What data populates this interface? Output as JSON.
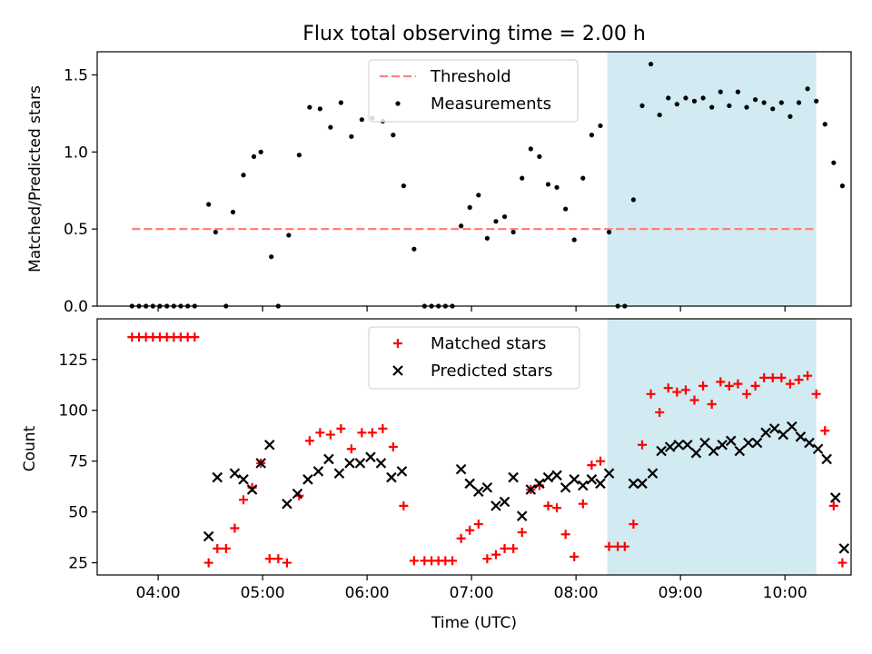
{
  "figure": {
    "title": "Flux total observing time = 2.00 h",
    "xlabel": "Time (UTC)",
    "highlight_color": "#add8e6"
  },
  "chart_data": [
    {
      "type": "scatter",
      "ylabel": "Matched/Predicted stars",
      "xlim": [
        "03:25",
        "10:38"
      ],
      "ylim": [
        0,
        1.65
      ],
      "yticks": [
        "0.0",
        "0.5",
        "1.0",
        "1.5"
      ],
      "grid": false,
      "legend": "top-center",
      "highlight_span": [
        "08:18",
        "10:18"
      ],
      "threshold": {
        "name": "Threshold",
        "value": 0.5,
        "x_range": [
          "03:45",
          "10:18"
        ],
        "color": "#ff7f7f",
        "style": "dashed"
      },
      "series": [
        {
          "name": "Measurements",
          "color": "#000000",
          "marker": "dot",
          "points": [
            [
              "03:45",
              0
            ],
            [
              "03:49",
              0
            ],
            [
              "03:53",
              0
            ],
            [
              "03:57",
              0
            ],
            [
              "04:01",
              0
            ],
            [
              "04:05",
              0
            ],
            [
              "04:09",
              0
            ],
            [
              "04:13",
              0
            ],
            [
              "04:17",
              0
            ],
            [
              "04:21",
              0
            ],
            [
              "04:29",
              0.66
            ],
            [
              "04:33",
              0.48
            ],
            [
              "04:39",
              0
            ],
            [
              "04:43",
              0.61
            ],
            [
              "04:49",
              0.85
            ],
            [
              "04:55",
              0.97
            ],
            [
              "04:59",
              1.0
            ],
            [
              "05:05",
              0.32
            ],
            [
              "05:09",
              0
            ],
            [
              "05:15",
              0.46
            ],
            [
              "05:21",
              0.98
            ],
            [
              "05:27",
              1.29
            ],
            [
              "05:33",
              1.28
            ],
            [
              "05:39",
              1.16
            ],
            [
              "05:45",
              1.32
            ],
            [
              "05:51",
              1.1
            ],
            [
              "05:57",
              1.21
            ],
            [
              "06:03",
              1.22
            ],
            [
              "06:09",
              1.2
            ],
            [
              "06:15",
              1.11
            ],
            [
              "06:21",
              0.78
            ],
            [
              "06:27",
              0.37
            ],
            [
              "06:33",
              0
            ],
            [
              "06:37",
              0
            ],
            [
              "06:41",
              0
            ],
            [
              "06:45",
              0
            ],
            [
              "06:49",
              0
            ],
            [
              "06:54",
              0.52
            ],
            [
              "06:59",
              0.64
            ],
            [
              "07:04",
              0.72
            ],
            [
              "07:09",
              0.44
            ],
            [
              "07:14",
              0.55
            ],
            [
              "07:19",
              0.58
            ],
            [
              "07:24",
              0.48
            ],
            [
              "07:29",
              0.83
            ],
            [
              "07:34",
              1.02
            ],
            [
              "07:39",
              0.97
            ],
            [
              "07:44",
              0.79
            ],
            [
              "07:49",
              0.77
            ],
            [
              "07:54",
              0.63
            ],
            [
              "07:59",
              0.43
            ],
            [
              "08:04",
              0.83
            ],
            [
              "08:09",
              1.11
            ],
            [
              "08:14",
              1.17
            ],
            [
              "08:19",
              0.48
            ],
            [
              "08:24",
              0
            ],
            [
              "08:28",
              0
            ],
            [
              "08:33",
              0.69
            ],
            [
              "08:38",
              1.3
            ],
            [
              "08:43",
              1.57
            ],
            [
              "08:48",
              1.24
            ],
            [
              "08:53",
              1.35
            ],
            [
              "08:58",
              1.31
            ],
            [
              "09:03",
              1.35
            ],
            [
              "09:08",
              1.33
            ],
            [
              "09:13",
              1.35
            ],
            [
              "09:18",
              1.29
            ],
            [
              "09:23",
              1.39
            ],
            [
              "09:28",
              1.3
            ],
            [
              "09:33",
              1.39
            ],
            [
              "09:38",
              1.29
            ],
            [
              "09:43",
              1.34
            ],
            [
              "09:48",
              1.32
            ],
            [
              "09:53",
              1.28
            ],
            [
              "09:58",
              1.32
            ],
            [
              "10:03",
              1.23
            ],
            [
              "10:08",
              1.32
            ],
            [
              "10:13",
              1.41
            ],
            [
              "10:18",
              1.33
            ],
            [
              "10:23",
              1.18
            ],
            [
              "10:28",
              0.93
            ],
            [
              "10:33",
              0.78
            ]
          ]
        }
      ]
    },
    {
      "type": "scatter",
      "ylabel": "Count",
      "xticks": [
        "04:00",
        "05:00",
        "06:00",
        "07:00",
        "08:00",
        "09:00",
        "10:00"
      ],
      "xlim": [
        "03:25",
        "10:38"
      ],
      "ylim": [
        19,
        145
      ],
      "yticks": [
        "25",
        "50",
        "75",
        "100",
        "125"
      ],
      "grid": false,
      "legend": "top-center",
      "highlight_span": [
        "08:18",
        "10:18"
      ],
      "series": [
        {
          "name": "Matched stars",
          "color": "#ff0000",
          "marker": "plus",
          "points": [
            [
              "03:45",
              136
            ],
            [
              "03:49",
              136
            ],
            [
              "03:53",
              136
            ],
            [
              "03:57",
              136
            ],
            [
              "04:01",
              136
            ],
            [
              "04:05",
              136
            ],
            [
              "04:09",
              136
            ],
            [
              "04:13",
              136
            ],
            [
              "04:17",
              136
            ],
            [
              "04:21",
              136
            ],
            [
              "04:29",
              25
            ],
            [
              "04:34",
              32
            ],
            [
              "04:39",
              32
            ],
            [
              "04:44",
              42
            ],
            [
              "04:49",
              56
            ],
            [
              "04:54",
              62
            ],
            [
              "04:59",
              74
            ],
            [
              "05:04",
              27
            ],
            [
              "05:09",
              27
            ],
            [
              "05:14",
              25
            ],
            [
              "05:21",
              58
            ],
            [
              "05:27",
              85
            ],
            [
              "05:33",
              89
            ],
            [
              "05:39",
              88
            ],
            [
              "05:45",
              91
            ],
            [
              "05:51",
              81
            ],
            [
              "05:57",
              89
            ],
            [
              "06:03",
              89
            ],
            [
              "06:09",
              91
            ],
            [
              "06:15",
              82
            ],
            [
              "06:21",
              53
            ],
            [
              "06:27",
              26
            ],
            [
              "06:33",
              26
            ],
            [
              "06:37",
              26
            ],
            [
              "06:41",
              26
            ],
            [
              "06:45",
              26
            ],
            [
              "06:49",
              26
            ],
            [
              "06:54",
              37
            ],
            [
              "06:59",
              41
            ],
            [
              "07:04",
              44
            ],
            [
              "07:09",
              27
            ],
            [
              "07:14",
              29
            ],
            [
              "07:19",
              32
            ],
            [
              "07:24",
              32
            ],
            [
              "07:29",
              40
            ],
            [
              "07:34",
              61
            ],
            [
              "07:39",
              63
            ],
            [
              "07:44",
              53
            ],
            [
              "07:49",
              52
            ],
            [
              "07:54",
              39
            ],
            [
              "07:59",
              28
            ],
            [
              "08:04",
              54
            ],
            [
              "08:09",
              73
            ],
            [
              "08:14",
              75
            ],
            [
              "08:19",
              33
            ],
            [
              "08:24",
              33
            ],
            [
              "08:28",
              33
            ],
            [
              "08:33",
              44
            ],
            [
              "08:38",
              83
            ],
            [
              "08:43",
              108
            ],
            [
              "08:48",
              99
            ],
            [
              "08:53",
              111
            ],
            [
              "08:58",
              109
            ],
            [
              "09:03",
              110
            ],
            [
              "09:08",
              105
            ],
            [
              "09:13",
              112
            ],
            [
              "09:18",
              103
            ],
            [
              "09:23",
              114
            ],
            [
              "09:28",
              112
            ],
            [
              "09:33",
              113
            ],
            [
              "09:38",
              108
            ],
            [
              "09:43",
              112
            ],
            [
              "09:48",
              116
            ],
            [
              "09:53",
              116
            ],
            [
              "09:58",
              116
            ],
            [
              "10:03",
              113
            ],
            [
              "10:08",
              115
            ],
            [
              "10:13",
              117
            ],
            [
              "10:18",
              108
            ],
            [
              "10:23",
              90
            ],
            [
              "10:28",
              53
            ],
            [
              "10:33",
              25
            ]
          ]
        },
        {
          "name": "Predicted stars",
          "color": "#000000",
          "marker": "x",
          "points": [
            [
              "04:29",
              38
            ],
            [
              "04:34",
              67
            ],
            [
              "04:44",
              69
            ],
            [
              "04:49",
              66
            ],
            [
              "04:54",
              61
            ],
            [
              "04:59",
              74
            ],
            [
              "05:04",
              83
            ],
            [
              "05:14",
              54
            ],
            [
              "05:20",
              59
            ],
            [
              "05:26",
              66
            ],
            [
              "05:32",
              70
            ],
            [
              "05:38",
              76
            ],
            [
              "05:44",
              69
            ],
            [
              "05:50",
              74
            ],
            [
              "05:56",
              74
            ],
            [
              "06:02",
              77
            ],
            [
              "06:08",
              74
            ],
            [
              "06:14",
              67
            ],
            [
              "06:20",
              70
            ],
            [
              "06:54",
              71
            ],
            [
              "06:59",
              64
            ],
            [
              "07:04",
              60
            ],
            [
              "07:09",
              62
            ],
            [
              "07:14",
              53
            ],
            [
              "07:19",
              55
            ],
            [
              "07:24",
              67
            ],
            [
              "07:29",
              48
            ],
            [
              "07:34",
              61
            ],
            [
              "07:39",
              64
            ],
            [
              "07:44",
              67
            ],
            [
              "07:49",
              68
            ],
            [
              "07:54",
              62
            ],
            [
              "07:59",
              66
            ],
            [
              "08:04",
              63
            ],
            [
              "08:09",
              66
            ],
            [
              "08:14",
              64
            ],
            [
              "08:19",
              69
            ],
            [
              "08:33",
              64
            ],
            [
              "08:38",
              64
            ],
            [
              "08:44",
              69
            ],
            [
              "08:49",
              80
            ],
            [
              "08:54",
              82
            ],
            [
              "08:59",
              83
            ],
            [
              "09:04",
              83
            ],
            [
              "09:09",
              79
            ],
            [
              "09:14",
              84
            ],
            [
              "09:19",
              80
            ],
            [
              "09:24",
              83
            ],
            [
              "09:29",
              85
            ],
            [
              "09:34",
              80
            ],
            [
              "09:39",
              84
            ],
            [
              "09:44",
              84
            ],
            [
              "09:49",
              89
            ],
            [
              "09:54",
              91
            ],
            [
              "09:59",
              88
            ],
            [
              "10:04",
              92
            ],
            [
              "10:09",
              87
            ],
            [
              "10:14",
              84
            ],
            [
              "10:19",
              81
            ],
            [
              "10:24",
              76
            ],
            [
              "10:29",
              57
            ],
            [
              "10:34",
              32
            ]
          ]
        }
      ]
    }
  ]
}
